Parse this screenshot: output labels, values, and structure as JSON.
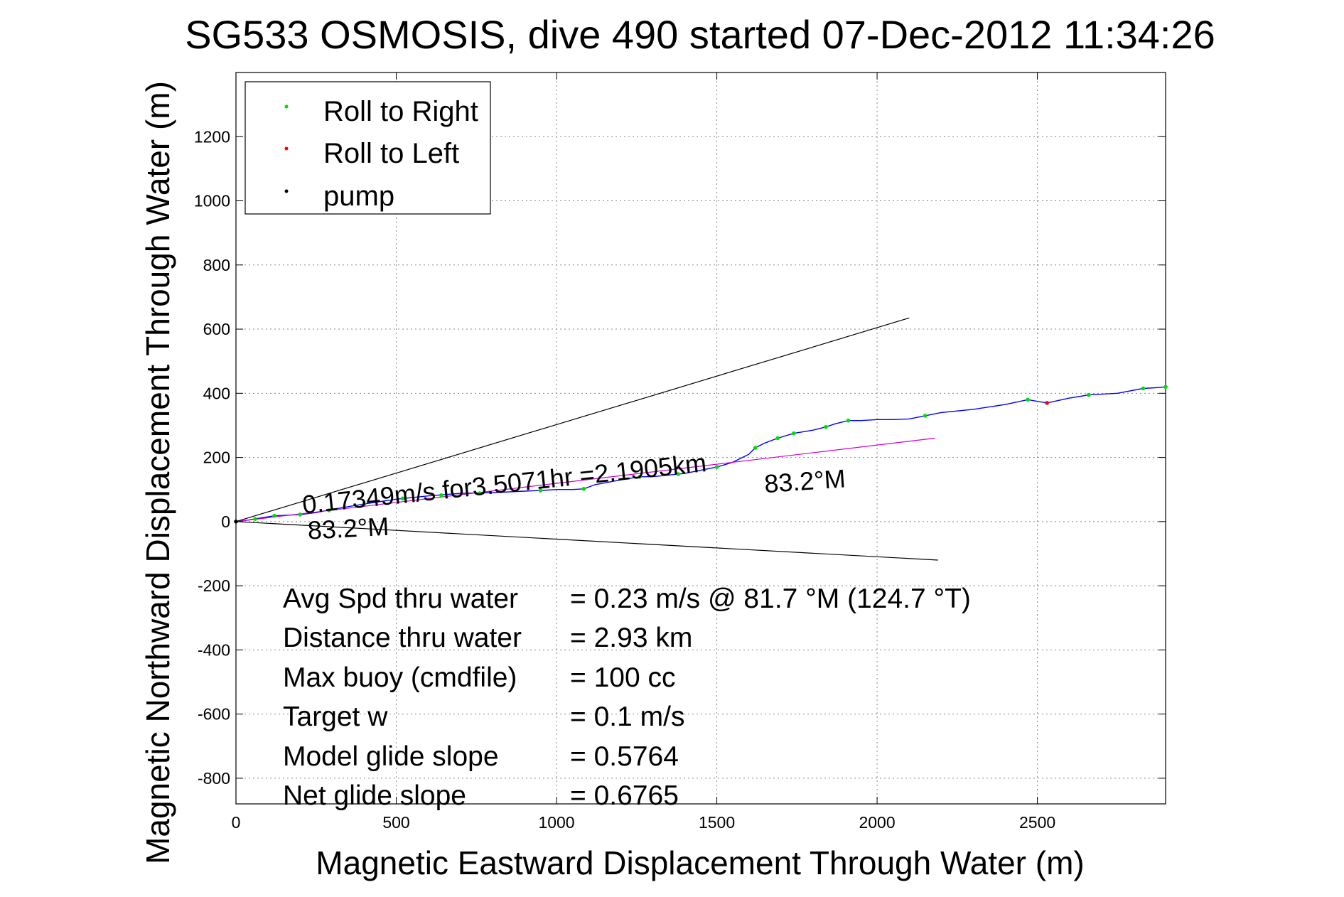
{
  "chart_data": {
    "type": "line",
    "title": "SG533 OSMOSIS, dive 490 started 07-Dec-2012 11:34:26",
    "xlabel": "Magnetic Eastward Displacement Through Water (m)",
    "ylabel": "Magnetic Northward Displacement Through Water (m)",
    "xlim": [
      0,
      2900
    ],
    "ylim": [
      -880,
      1400
    ],
    "x_ticks": [
      "0",
      "500",
      "1000",
      "1500",
      "2000",
      "2500"
    ],
    "x_tick_values": [
      0,
      500,
      1000,
      1500,
      2000,
      2500
    ],
    "y_ticks": [
      "-800",
      "-600",
      "-400",
      "-200",
      "0",
      "200",
      "400",
      "600",
      "800",
      "1000",
      "1200"
    ],
    "y_tick_values": [
      -800,
      -600,
      -400,
      -200,
      0,
      200,
      400,
      600,
      800,
      1000,
      1200
    ],
    "grid": true,
    "legend": {
      "position": "top-left",
      "entries": [
        {
          "label": "Roll to Right",
          "color": "#00dd00"
        },
        {
          "label": "Roll to Left",
          "color": "#ff0000"
        },
        {
          "label": "pump",
          "color": "#000000"
        }
      ]
    },
    "series": [
      {
        "style": "track",
        "color": "#0000ff",
        "x": [
          0,
          40,
          80,
          120,
          160,
          200,
          250,
          300,
          400,
          500,
          600,
          700,
          800,
          900,
          950,
          1000,
          1050,
          1085,
          1120,
          1200,
          1260,
          1300,
          1400,
          1500,
          1550,
          1600,
          1620,
          1650,
          1690,
          1740,
          1800,
          1840,
          1870,
          1910,
          1950,
          2000,
          2050,
          2100,
          2150,
          2200,
          2300,
          2400,
          2470,
          2530,
          2600,
          2660,
          2750,
          2830,
          2880,
          2900
        ],
        "y": [
          0,
          5,
          12,
          18,
          20,
          22,
          28,
          38,
          55,
          70,
          80,
          88,
          90,
          95,
          97,
          100,
          100,
          102,
          115,
          130,
          140,
          140,
          150,
          170,
          185,
          210,
          230,
          245,
          260,
          275,
          285,
          295,
          305,
          315,
          315,
          318,
          318,
          320,
          330,
          340,
          350,
          365,
          380,
          370,
          385,
          395,
          400,
          415,
          418,
          420
        ]
      },
      {
        "style": "direct-course",
        "color": "#cc00cc",
        "x": [
          0,
          2180
        ],
        "y": [
          0,
          260
        ]
      },
      {
        "style": "heading-bound",
        "color": "#000000",
        "x": [
          0,
          2100
        ],
        "y": [
          0,
          635
        ]
      },
      {
        "style": "heading-bound",
        "color": "#000000",
        "x": [
          0,
          2190
        ],
        "y": [
          0,
          -120
        ]
      }
    ],
    "markers": {
      "roll_right": {
        "color": "#00dd00",
        "x": [
          60,
          120,
          200,
          290,
          400,
          520,
          640,
          760,
          950,
          1085,
          1260,
          1380,
          1500,
          1620,
          1690,
          1740,
          1840,
          1910,
          2150,
          2470,
          2660,
          2830,
          2900
        ],
        "y": [
          8,
          18,
          22,
          35,
          55,
          72,
          82,
          88,
          97,
          102,
          140,
          148,
          170,
          230,
          260,
          275,
          295,
          315,
          330,
          380,
          395,
          415,
          420
        ]
      },
      "roll_left": {
        "color": "#ff0000",
        "x": [
          2530
        ],
        "y": [
          370
        ]
      },
      "pump": {
        "color": "#000000",
        "x": [
          0
        ],
        "y": [
          0
        ]
      }
    },
    "annotations": [
      {
        "text": "0.17349m/s for3.5071hr =2.1905km",
        "x": 210,
        "y": 25,
        "rotate": -6
      },
      {
        "text": "83.2°M",
        "x": 1650,
        "y": 90,
        "rotate": -4
      },
      {
        "text": "83.2°M",
        "x": 225,
        "y": -55,
        "rotate": -3
      }
    ],
    "stats": [
      {
        "label": "Avg Spd thru water",
        "value": "=  0.23 m/s @  81.7 °M (124.7 °T)"
      },
      {
        "label": "Distance thru water",
        "value": "=  2.93 km"
      },
      {
        "label": "Max buoy (cmdfile)",
        "value": "= 100 cc"
      },
      {
        "label": "Target w",
        "value": "= 0.1 m/s"
      },
      {
        "label": "Model glide slope",
        "value": "= 0.5764"
      },
      {
        "label": "Net glide slope",
        "value": "= 0.6765"
      }
    ]
  }
}
